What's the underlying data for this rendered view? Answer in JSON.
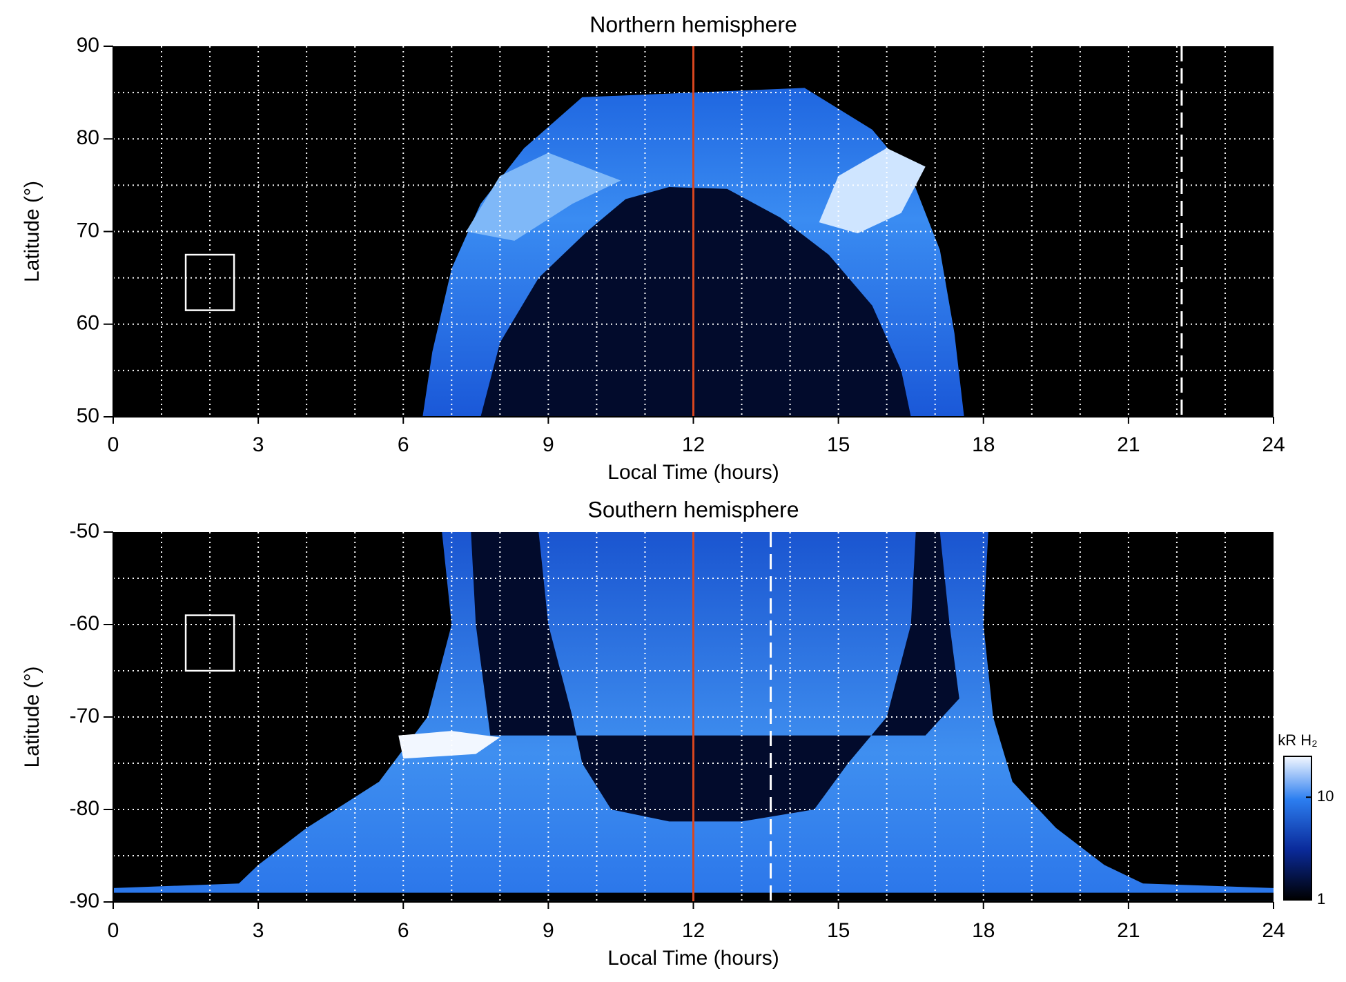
{
  "chart_data": [
    {
      "type": "heatmap",
      "title": "Northern hemisphere",
      "xlabel": "Local Time (hours)",
      "ylabel": "Latitude (°)",
      "xlim": [
        0,
        24
      ],
      "xticks": [
        0,
        3,
        6,
        9,
        12,
        15,
        18,
        21,
        24
      ],
      "ylim": [
        50,
        90
      ],
      "yticks": [
        50,
        60,
        70,
        80,
        90
      ],
      "xgrid": [
        1,
        2,
        3,
        4,
        5,
        6,
        7,
        8,
        9,
        10,
        11,
        13,
        14,
        15,
        16,
        17,
        18,
        19,
        20,
        21,
        22,
        23
      ],
      "ygrid": [
        55,
        60,
        65,
        70,
        75,
        80,
        85
      ],
      "vlines": [
        {
          "x": 12,
          "color": "#d8461f",
          "style": "solid"
        },
        {
          "x": 22.1,
          "color": "#ffffff",
          "style": "dashed"
        }
      ]
    },
    {
      "type": "heatmap",
      "title": "Southern hemisphere",
      "xlabel": "Local Time (hours)",
      "ylabel": "Latitude (°)",
      "xlim": [
        0,
        24
      ],
      "xticks": [
        0,
        3,
        6,
        9,
        12,
        15,
        18,
        21,
        24
      ],
      "ylim": [
        -90,
        -50
      ],
      "yticks": [
        -90,
        -80,
        -70,
        -60,
        -50
      ],
      "xgrid": [
        1,
        2,
        3,
        4,
        5,
        6,
        7,
        8,
        9,
        10,
        11,
        13,
        14,
        15,
        16,
        17,
        18,
        19,
        20,
        21,
        22,
        23
      ],
      "ygrid": [
        -85,
        -80,
        -75,
        -70,
        -65,
        -60,
        -55
      ],
      "vlines": [
        {
          "x": 12,
          "color": "#d8461f",
          "style": "solid"
        },
        {
          "x": 13.6,
          "color": "#ffffff",
          "style": "dashed"
        }
      ],
      "colorbar": {
        "label": "kR H₂",
        "lim": [
          1,
          25
        ],
        "ticks": [
          1,
          10
        ],
        "log": true
      }
    }
  ]
}
